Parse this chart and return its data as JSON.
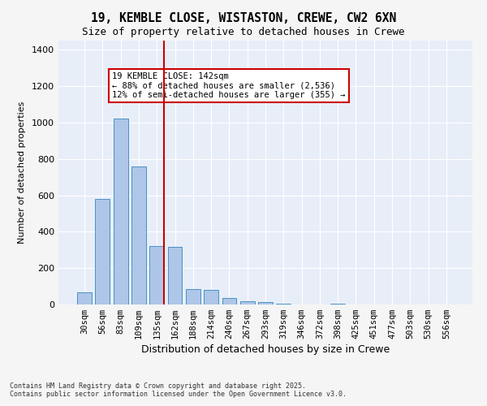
{
  "title1": "19, KEMBLE CLOSE, WISTASTON, CREWE, CW2 6XN",
  "title2": "Size of property relative to detached houses in Crewe",
  "xlabel": "Distribution of detached houses by size in Crewe",
  "ylabel": "Number of detached properties",
  "categories": [
    "30sqm",
    "56sqm",
    "83sqm",
    "109sqm",
    "135sqm",
    "162sqm",
    "188sqm",
    "214sqm",
    "240sqm",
    "267sqm",
    "293sqm",
    "319sqm",
    "346sqm",
    "372sqm",
    "398sqm",
    "425sqm",
    "451sqm",
    "477sqm",
    "503sqm",
    "530sqm",
    "556sqm"
  ],
  "values": [
    65,
    580,
    1020,
    760,
    320,
    315,
    85,
    80,
    35,
    20,
    12,
    6,
    0,
    0,
    5,
    0,
    0,
    0,
    0,
    0,
    0
  ],
  "bar_color": "#aec6e8",
  "bar_edge_color": "#4a90c4",
  "background_color": "#e8eef8",
  "grid_color": "#ffffff",
  "vline_x": 4,
  "vline_color": "#cc0000",
  "annotation_text": "19 KEMBLE CLOSE: 142sqm\n← 88% of detached houses are smaller (2,536)\n12% of semi-detached houses are larger (355) →",
  "annotation_box_color": "#cc0000",
  "footer": "Contains HM Land Registry data © Crown copyright and database right 2025.\nContains public sector information licensed under the Open Government Licence v3.0.",
  "ylim": [
    0,
    1450
  ],
  "yticks": [
    0,
    200,
    400,
    600,
    800,
    1000,
    1200,
    1400
  ]
}
